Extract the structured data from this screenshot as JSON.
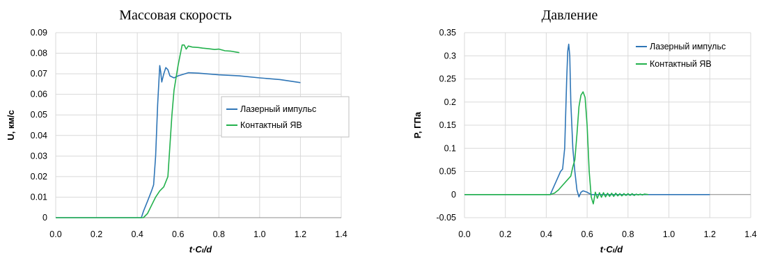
{
  "colors": {
    "laser": "#2E75B6",
    "contact": "#22B14C"
  },
  "chart_data": [
    {
      "type": "line",
      "title": "Массовая скорость",
      "ylabel": "U, км/с",
      "xlabel": "t·Cₗ/d",
      "xlim": [
        0,
        1.4
      ],
      "ylim": [
        0,
        0.09
      ],
      "x_ticks": [
        "0.0",
        "0.2",
        "0.4",
        "0.6",
        "0.8",
        "1.0",
        "1.2",
        "1.4"
      ],
      "y_ticks": [
        "0",
        "0.01",
        "0.02",
        "0.03",
        "0.04",
        "0.05",
        "0.06",
        "0.07",
        "0.08",
        "0.09"
      ],
      "grid": true,
      "legend": "right",
      "series": [
        {
          "name": "Лазерный импульс",
          "color_key": "laser",
          "points": [
            [
              0,
              0
            ],
            [
              0.42,
              0
            ],
            [
              0.43,
              0.003
            ],
            [
              0.45,
              0.008
            ],
            [
              0.47,
              0.013
            ],
            [
              0.48,
              0.016
            ],
            [
              0.49,
              0.03
            ],
            [
              0.5,
              0.055
            ],
            [
              0.51,
              0.074
            ],
            [
              0.515,
              0.071
            ],
            [
              0.52,
              0.066
            ],
            [
              0.53,
              0.07
            ],
            [
              0.54,
              0.073
            ],
            [
              0.55,
              0.072
            ],
            [
              0.56,
              0.069
            ],
            [
              0.58,
              0.068
            ],
            [
              0.6,
              0.069
            ],
            [
              0.65,
              0.0705
            ],
            [
              0.7,
              0.0703
            ],
            [
              0.8,
              0.0695
            ],
            [
              0.9,
              0.069
            ],
            [
              1.0,
              0.068
            ],
            [
              1.1,
              0.0672
            ],
            [
              1.2,
              0.0657
            ]
          ]
        },
        {
          "name": "Контактный ЯВ",
          "color_key": "contact",
          "points": [
            [
              0,
              0
            ],
            [
              0.43,
              0
            ],
            [
              0.45,
              0.002
            ],
            [
              0.47,
              0.006
            ],
            [
              0.49,
              0.01
            ],
            [
              0.51,
              0.013
            ],
            [
              0.53,
              0.015
            ],
            [
              0.55,
              0.02
            ],
            [
              0.56,
              0.035
            ],
            [
              0.57,
              0.05
            ],
            [
              0.58,
              0.062
            ],
            [
              0.59,
              0.068
            ],
            [
              0.6,
              0.074
            ],
            [
              0.61,
              0.079
            ],
            [
              0.62,
              0.084
            ],
            [
              0.63,
              0.084
            ],
            [
              0.64,
              0.082
            ],
            [
              0.65,
              0.0835
            ],
            [
              0.67,
              0.083
            ],
            [
              0.7,
              0.0828
            ],
            [
              0.72,
              0.0825
            ],
            [
              0.75,
              0.0822
            ],
            [
              0.78,
              0.0818
            ],
            [
              0.8,
              0.082
            ],
            [
              0.83,
              0.0812
            ],
            [
              0.86,
              0.081
            ],
            [
              0.9,
              0.0803
            ]
          ]
        }
      ]
    },
    {
      "type": "line",
      "title": "Давление",
      "ylabel": "P, ГПа",
      "xlabel": "t·Cₗ/d",
      "xlim": [
        0,
        1.4
      ],
      "ylim": [
        -0.05,
        0.35
      ],
      "x_ticks": [
        "0.0",
        "0.2",
        "0.4",
        "0.6",
        "0.8",
        "1.0",
        "1.2",
        "1.4"
      ],
      "y_ticks": [
        "-0.05",
        "0",
        "0.05",
        "0.1",
        "0.15",
        "0.2",
        "0.25",
        "0.3",
        "0.35"
      ],
      "grid": true,
      "legend": "top-right",
      "series": [
        {
          "name": "Лазерный импульс",
          "color_key": "laser",
          "points": [
            [
              0,
              0
            ],
            [
              0.42,
              0
            ],
            [
              0.43,
              0.01
            ],
            [
              0.45,
              0.03
            ],
            [
              0.47,
              0.05
            ],
            [
              0.48,
              0.055
            ],
            [
              0.49,
              0.1
            ],
            [
              0.5,
              0.25
            ],
            [
              0.505,
              0.31
            ],
            [
              0.51,
              0.325
            ],
            [
              0.515,
              0.3
            ],
            [
              0.52,
              0.2
            ],
            [
              0.53,
              0.1
            ],
            [
              0.54,
              0.05
            ],
            [
              0.55,
              0.01
            ],
            [
              0.56,
              -0.005
            ],
            [
              0.57,
              0.005
            ],
            [
              0.58,
              0.008
            ],
            [
              0.6,
              0.005
            ],
            [
              0.62,
              0
            ],
            [
              1.2,
              0
            ]
          ]
        },
        {
          "name": "Контактный ЯВ",
          "color_key": "contact",
          "points": [
            [
              0,
              0
            ],
            [
              0.42,
              0
            ],
            [
              0.44,
              0.003
            ],
            [
              0.46,
              0.01
            ],
            [
              0.48,
              0.02
            ],
            [
              0.5,
              0.03
            ],
            [
              0.52,
              0.04
            ],
            [
              0.53,
              0.06
            ],
            [
              0.54,
              0.075
            ],
            [
              0.55,
              0.13
            ],
            [
              0.56,
              0.19
            ],
            [
              0.57,
              0.215
            ],
            [
              0.58,
              0.222
            ],
            [
              0.59,
              0.21
            ],
            [
              0.6,
              0.15
            ],
            [
              0.61,
              0.05
            ],
            [
              0.62,
              -0.005
            ],
            [
              0.63,
              -0.02
            ],
            [
              0.64,
              0.005
            ],
            [
              0.65,
              -0.008
            ],
            [
              0.66,
              0.004
            ],
            [
              0.67,
              -0.006
            ],
            [
              0.68,
              0.004
            ],
            [
              0.69,
              -0.005
            ],
            [
              0.7,
              0.003
            ],
            [
              0.71,
              -0.004
            ],
            [
              0.72,
              0.003
            ],
            [
              0.73,
              -0.004
            ],
            [
              0.74,
              0.003
            ],
            [
              0.75,
              -0.003
            ],
            [
              0.76,
              0.002
            ],
            [
              0.77,
              -0.003
            ],
            [
              0.78,
              0.002
            ],
            [
              0.79,
              -0.002
            ],
            [
              0.8,
              0.002
            ],
            [
              0.81,
              -0.002
            ],
            [
              0.82,
              0.002
            ],
            [
              0.83,
              -0.002
            ],
            [
              0.84,
              0.001
            ],
            [
              0.85,
              -0.001
            ],
            [
              0.86,
              0.001
            ],
            [
              0.87,
              -0.001
            ],
            [
              0.88,
              0.001
            ],
            [
              0.9,
              0
            ]
          ]
        }
      ]
    }
  ]
}
